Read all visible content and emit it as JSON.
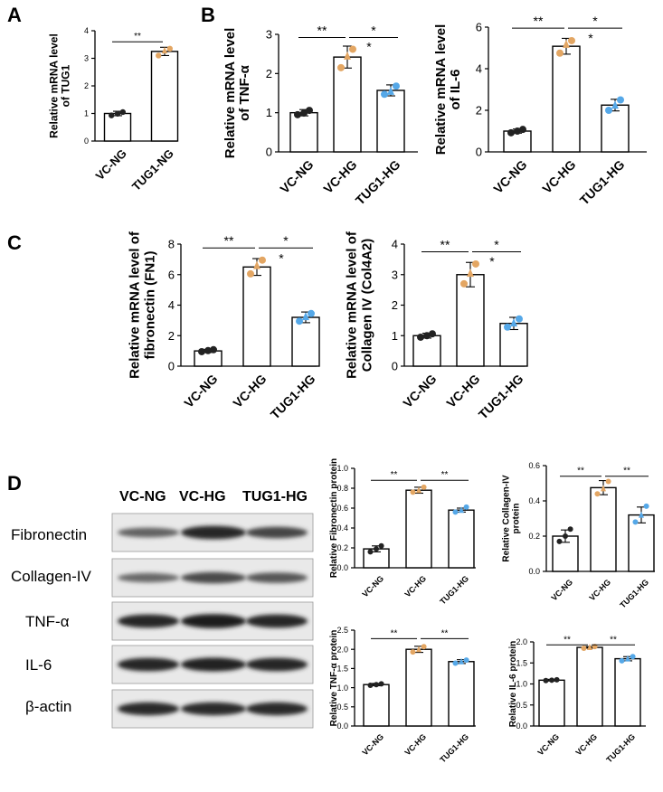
{
  "panel_letters": {
    "a": "A",
    "b": "B",
    "c": "C",
    "d": "D"
  },
  "colors": {
    "bar_fill": "#ffffff",
    "bar_stroke": "#000000",
    "dot_ng": "#222222",
    "dot_hg": "#e3a663",
    "dot_tug": "#55a8e8"
  },
  "western_blot": {
    "lane_labels": [
      "VC-NG",
      "VC-HG",
      "TUG1-HG"
    ],
    "row_labels": [
      "Fibronectin",
      "Collagen-IV",
      "TNF-α",
      "IL-6",
      "β-actin"
    ],
    "row_intensity": [
      [
        0.35,
        0.85,
        0.6
      ],
      [
        0.3,
        0.55,
        0.45
      ],
      [
        0.85,
        0.95,
        0.85
      ],
      [
        0.85,
        0.9,
        0.85
      ],
      [
        0.8,
        0.8,
        0.8
      ]
    ]
  },
  "chart_data": [
    {
      "id": "tug1",
      "type": "bar",
      "categories": [
        "VC-NG",
        "TUG1-NG"
      ],
      "values": [
        1.0,
        3.25
      ],
      "errors": [
        0.08,
        0.15
      ],
      "points": [
        [
          0.93,
          1.05,
          0.99
        ],
        [
          3.1,
          3.35,
          3.28
        ]
      ],
      "ylabel": [
        "Relative mRNA level",
        "of TUG1"
      ],
      "ylim": [
        0,
        4
      ],
      "yticks": [
        "0",
        "1",
        "2",
        "3",
        "4"
      ],
      "sig": [
        {
          "from": 0,
          "to": 1,
          "y": 3.6,
          "label": "**"
        }
      ]
    },
    {
      "id": "tnfa",
      "type": "bar",
      "categories": [
        "VC-NG",
        "VC-HG",
        "TUG1-HG"
      ],
      "values": [
        1.0,
        2.42,
        1.57
      ],
      "errors": [
        0.08,
        0.28,
        0.14
      ],
      "points": [
        [
          0.95,
          1.06,
          0.99
        ],
        [
          2.15,
          2.62,
          2.45
        ],
        [
          1.47,
          1.68,
          1.55
        ]
      ],
      "ylabel": [
        "Relative mRNA level",
        "of TNF-α"
      ],
      "ylim": [
        0,
        3
      ],
      "yticks": [
        "0",
        "1",
        "2",
        "3"
      ],
      "sig": [
        {
          "from": 0,
          "to": 1,
          "y": 2.92,
          "label": "**"
        },
        {
          "from": 1,
          "to": 2,
          "y": 2.92,
          "label": "*"
        }
      ],
      "extra_labels": [
        {
          "x": 2,
          "y": 2.62,
          "label": "*"
        }
      ]
    },
    {
      "id": "il6",
      "type": "bar",
      "categories": [
        "VC-NG",
        "VC-HG",
        "TUG1-HG"
      ],
      "values": [
        1.0,
        5.08,
        2.25
      ],
      "errors": [
        0.1,
        0.38,
        0.28
      ],
      "points": [
        [
          0.92,
          1.08,
          1.0
        ],
        [
          4.75,
          5.35,
          5.18
        ],
        [
          2.0,
          2.5,
          2.25
        ]
      ],
      "ylabel": [
        "Relative mRNA level",
        "of IL-6"
      ],
      "ylim": [
        0,
        6
      ],
      "yticks": [
        "0",
        "2",
        "4",
        "6"
      ],
      "sig": [
        {
          "from": 0,
          "to": 1,
          "y": 5.95,
          "label": "**"
        },
        {
          "from": 1,
          "to": 2,
          "y": 5.95,
          "label": "*"
        }
      ],
      "extra_labels": [
        {
          "x": 2,
          "y": 5.35,
          "label": "*"
        }
      ]
    },
    {
      "id": "fn1",
      "type": "bar",
      "categories": [
        "VC-NG",
        "VC-HG",
        "TUG1-HG"
      ],
      "values": [
        1.0,
        6.5,
        3.2
      ],
      "errors": [
        0.1,
        0.55,
        0.35
      ],
      "points": [
        [
          0.95,
          1.08,
          1.02
        ],
        [
          6.05,
          6.95,
          6.6
        ],
        [
          2.95,
          3.45,
          3.25
        ]
      ],
      "ylabel": [
        "Relative mRNA level of",
        "fibronectin (FN1)"
      ],
      "ylim": [
        0,
        8
      ],
      "yticks": [
        "0",
        "2",
        "4",
        "6",
        "8"
      ],
      "sig": [
        {
          "from": 0,
          "to": 1,
          "y": 7.75,
          "label": "**"
        },
        {
          "from": 1,
          "to": 2,
          "y": 7.75,
          "label": "*"
        }
      ],
      "extra_labels": [
        {
          "x": 2,
          "y": 6.9,
          "label": "*"
        }
      ]
    },
    {
      "id": "col4a2",
      "type": "bar",
      "categories": [
        "VC-NG",
        "VC-HG",
        "TUG1-HG"
      ],
      "values": [
        1.0,
        3.0,
        1.4
      ],
      "errors": [
        0.08,
        0.4,
        0.2
      ],
      "points": [
        [
          0.95,
          1.06,
          1.0
        ],
        [
          2.7,
          3.35,
          3.05
        ],
        [
          1.28,
          1.55,
          1.42
        ]
      ],
      "ylabel": [
        "Relative mRNA level of",
        "Collagen IV (Col4A2)"
      ],
      "ylim": [
        0,
        4
      ],
      "yticks": [
        "0",
        "1",
        "2",
        "3",
        "4"
      ],
      "sig": [
        {
          "from": 0,
          "to": 1,
          "y": 3.75,
          "label": "**"
        },
        {
          "from": 1,
          "to": 2,
          "y": 3.75,
          "label": "*"
        }
      ],
      "extra_labels": [
        {
          "x": 2,
          "y": 3.35,
          "label": "*"
        }
      ]
    },
    {
      "id": "fibronectin_protein",
      "type": "bar",
      "categories": [
        "VC-NG",
        "VC-HG",
        "TUG1-HG"
      ],
      "values": [
        0.19,
        0.78,
        0.58
      ],
      "errors": [
        0.03,
        0.03,
        0.02
      ],
      "points": [
        [
          0.16,
          0.22,
          0.19
        ],
        [
          0.76,
          0.81,
          0.78
        ],
        [
          0.56,
          0.61,
          0.58
        ]
      ],
      "ylabel": [
        "Relative Fibronectin protein"
      ],
      "ylim": [
        0,
        1.0
      ],
      "yticks": [
        "0.0",
        "0.2",
        "0.4",
        "0.6",
        "0.8",
        "1.0"
      ],
      "sig": [
        {
          "from": 0,
          "to": 1,
          "y": 0.88,
          "label": "**"
        },
        {
          "from": 1,
          "to": 2,
          "y": 0.88,
          "label": "**"
        }
      ]
    },
    {
      "id": "collagen_protein",
      "type": "bar",
      "categories": [
        "VC-NG",
        "VC-HG",
        "TUG1-HG"
      ],
      "values": [
        0.2,
        0.475,
        0.32
      ],
      "errors": [
        0.035,
        0.04,
        0.045
      ],
      "points": [
        [
          0.17,
          0.24,
          0.2
        ],
        [
          0.44,
          0.51,
          0.47
        ],
        [
          0.28,
          0.37,
          0.32
        ]
      ],
      "ylabel": [
        "Relative Collagen-IV",
        "protein"
      ],
      "ylim": [
        0,
        0.6
      ],
      "yticks": [
        "0.0",
        "0.2",
        "0.4",
        "0.6"
      ],
      "sig": [
        {
          "from": 0,
          "to": 1,
          "y": 0.54,
          "label": "**"
        },
        {
          "from": 1,
          "to": 2,
          "y": 0.54,
          "label": "**"
        }
      ]
    },
    {
      "id": "tnfa_protein",
      "type": "bar",
      "categories": [
        "VC-NG",
        "VC-HG",
        "TUG1-HG"
      ],
      "values": [
        1.08,
        2.0,
        1.68
      ],
      "errors": [
        0.03,
        0.08,
        0.05
      ],
      "points": [
        [
          1.06,
          1.1,
          1.08
        ],
        [
          1.93,
          2.07,
          2.0
        ],
        [
          1.64,
          1.72,
          1.68
        ]
      ],
      "ylabel": [
        "Relative TNF-α protein"
      ],
      "ylim": [
        0,
        2.5
      ],
      "yticks": [
        "0.0",
        "0.5",
        "1.0",
        "1.5",
        "2.0",
        "2.5"
      ],
      "sig": [
        {
          "from": 0,
          "to": 1,
          "y": 2.28,
          "label": "**"
        },
        {
          "from": 1,
          "to": 2,
          "y": 2.28,
          "label": "**"
        }
      ]
    },
    {
      "id": "il6_protein",
      "type": "bar",
      "categories": [
        "VC-NG",
        "VC-HG",
        "TUG1-HG"
      ],
      "values": [
        1.09,
        1.87,
        1.6
      ],
      "errors": [
        0.02,
        0.02,
        0.05
      ],
      "points": [
        [
          1.08,
          1.1,
          1.09
        ],
        [
          1.85,
          1.89,
          1.87
        ],
        [
          1.55,
          1.65,
          1.6
        ]
      ],
      "ylabel": [
        "Relative IL-6 protein"
      ],
      "ylim": [
        0.0,
        2.0
      ],
      "yticks": [
        "0.0",
        "0.5",
        "1.0",
        "1.5",
        "2.0"
      ],
      "sig": [
        {
          "from": 0,
          "to": 1,
          "y": 1.93,
          "label": "**"
        },
        {
          "from": 1,
          "to": 2,
          "y": 1.93,
          "label": "**"
        }
      ]
    }
  ]
}
